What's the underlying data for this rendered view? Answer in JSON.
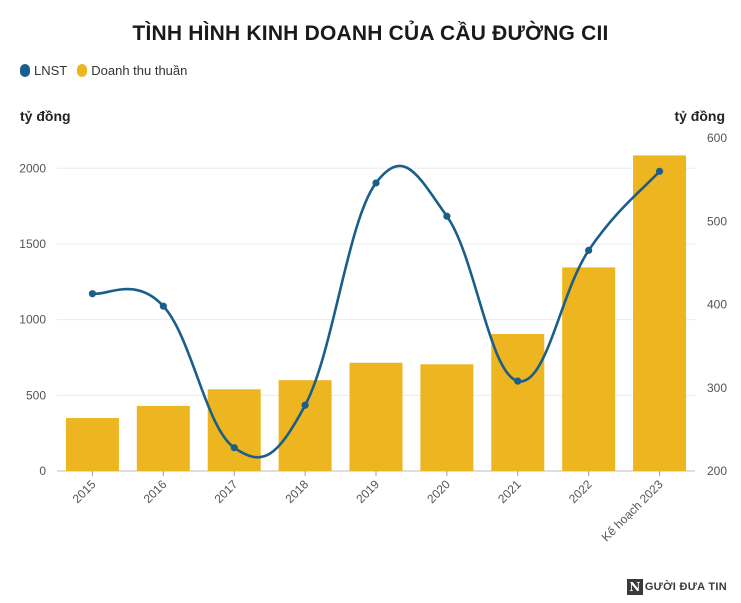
{
  "chart_data": {
    "type": "bar",
    "title": "TÌNH HÌNH KINH DOANH CỦA CẦU ĐƯỜNG CII",
    "categories": [
      "2015",
      "2016",
      "2017",
      "2018",
      "2019",
      "2020",
      "2021",
      "2022",
      "Kế hoạch 2023"
    ],
    "series": [
      {
        "name": "LNST",
        "kind": "line",
        "axis": "right",
        "color": "#1b5e8a",
        "values": [
          413,
          398,
          228,
          279,
          546,
          506,
          308,
          465,
          560
        ]
      },
      {
        "name": "Doanh thu thuần",
        "kind": "bar",
        "axis": "left",
        "color": "#edb520",
        "values": [
          350,
          430,
          540,
          600,
          715,
          705,
          905,
          1345,
          2085
        ]
      }
    ],
    "y_left": {
      "label": "tỷ đồng",
      "range": [
        0,
        2200
      ],
      "ticks": [
        0,
        500,
        1000,
        1500,
        2000
      ]
    },
    "y_right": {
      "label": "tỷ đồng",
      "range": [
        200,
        600
      ],
      "ticks": [
        200,
        300,
        400,
        500,
        600
      ]
    },
    "grid": true,
    "legend_position": "top-left"
  },
  "watermark": {
    "logo_letter": "N",
    "text": "GƯỜI ĐƯA TIN"
  }
}
